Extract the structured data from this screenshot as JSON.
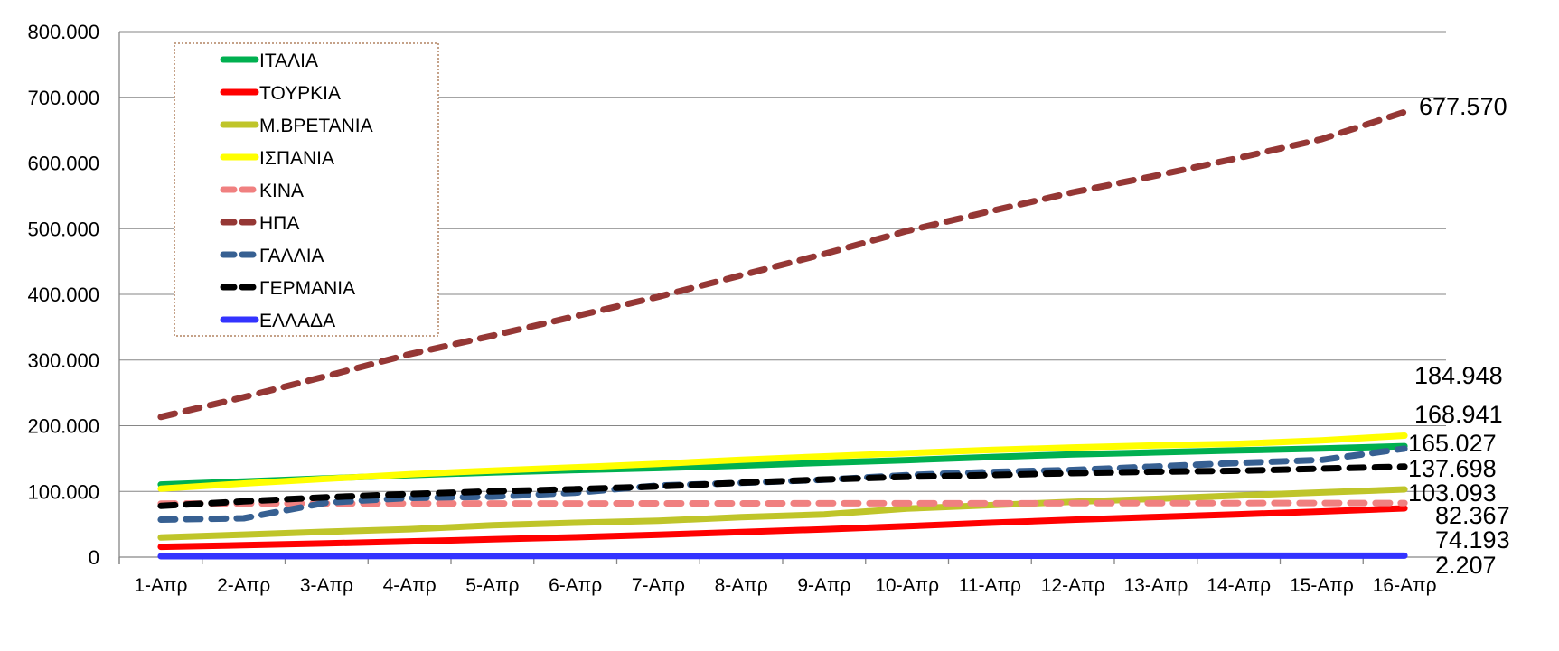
{
  "chart_data": {
    "type": "line",
    "title": "",
    "xlabel": "",
    "ylabel": "",
    "ylim": [
      0,
      800000
    ],
    "yticks": [
      0,
      100000,
      200000,
      300000,
      400000,
      500000,
      600000,
      700000,
      800000
    ],
    "ytick_labels": [
      "0",
      "100.000",
      "200.000",
      "300.000",
      "400.000",
      "500.000",
      "600.000",
      "700.000",
      "800.000"
    ],
    "categories": [
      "1-Απρ",
      "2-Απρ",
      "3-Απρ",
      "4-Απρ",
      "5-Απρ",
      "6-Απρ",
      "7-Απρ",
      "8-Απρ",
      "9-Απρ",
      "10-Απρ",
      "11-Απρ",
      "12-Απρ",
      "13-Απρ",
      "14-Απρ",
      "15-Απρ",
      "16-Απρ"
    ],
    "grid": true,
    "legend_position": "top-left",
    "series": [
      {
        "name": "ΙΤΑΛΙΑ",
        "color": "#00b050",
        "dash": false,
        "values": [
          110574,
          115242,
          119827,
          124632,
          128948,
          132547,
          135586,
          139422,
          143626,
          147577,
          152271,
          156363,
          159516,
          162488,
          165155,
          168941
        ]
      },
      {
        "name": "ΤΟΥΡΚΙΑ",
        "color": "#ff0000",
        "dash": false,
        "values": [
          15679,
          18135,
          20921,
          23934,
          27069,
          30217,
          34109,
          38226,
          42282,
          47029,
          52167,
          56956,
          61049,
          65111,
          69392,
          74193
        ]
      },
      {
        "name": "Μ.ΒΡΕΤΑΝΙΑ",
        "color": "#bfc52a",
        "dash": false,
        "values": [
          29865,
          34173,
          38689,
          42477,
          48436,
          52279,
          55242,
          60733,
          65077,
          73758,
          78991,
          84279,
          88621,
          93873,
          98476,
          103093
        ]
      },
      {
        "name": "ΙΣΠΑΝΙΑ",
        "color": "#ffff00",
        "dash": false,
        "values": [
          104118,
          112065,
          119199,
          126168,
          131646,
          136675,
          141942,
          148220,
          153222,
          158273,
          163027,
          166831,
          170099,
          172541,
          177644,
          184948
        ]
      },
      {
        "name": "ΚΙΝΑ",
        "color": "#f08080",
        "dash": true,
        "values": [
          81554,
          81589,
          81620,
          81639,
          81669,
          81708,
          81740,
          81802,
          81865,
          81907,
          81953,
          82052,
          82160,
          82249,
          82295,
          82367
        ]
      },
      {
        "name": "ΗΠΑ",
        "color": "#953735",
        "dash": true,
        "values": [
          213372,
          243453,
          275586,
          308850,
          337072,
          366667,
          396223,
          429052,
          461437,
          496535,
          526396,
          555313,
          580619,
          607670,
          636350,
          677570
        ]
      },
      {
        "name": "ΓΑΛΛΙΑ",
        "color": "#376092",
        "dash": true,
        "values": [
          56989,
          59105,
          83080,
          90000,
          92000,
          98000,
          109069,
          112950,
          117749,
          124869,
          129654,
          132591,
          137875,
          143303,
          147863,
          165027
        ]
      },
      {
        "name": "ΓΕΡΜΑΝΙΑ",
        "color": "#000000",
        "dash": true,
        "values": [
          77872,
          84794,
          91159,
          96092,
          100123,
          103374,
          107663,
          113296,
          118181,
          122171,
          124908,
          127854,
          130072,
          131359,
          134753,
          137698
        ]
      },
      {
        "name": "ΕΛΛΑΔΑ",
        "color": "#3333ff",
        "dash": false,
        "values": [
          1314,
          1415,
          1544,
          1613,
          1673,
          1735,
          1755,
          1832,
          1884,
          1955,
          2011,
          2081,
          2114,
          2145,
          2170,
          2207
        ]
      }
    ],
    "end_labels": [
      "677.570",
      "184.948",
      "168.941",
      "165.027",
      "137.698",
      "103.093",
      "82.367",
      "74.193",
      "2.207"
    ]
  }
}
